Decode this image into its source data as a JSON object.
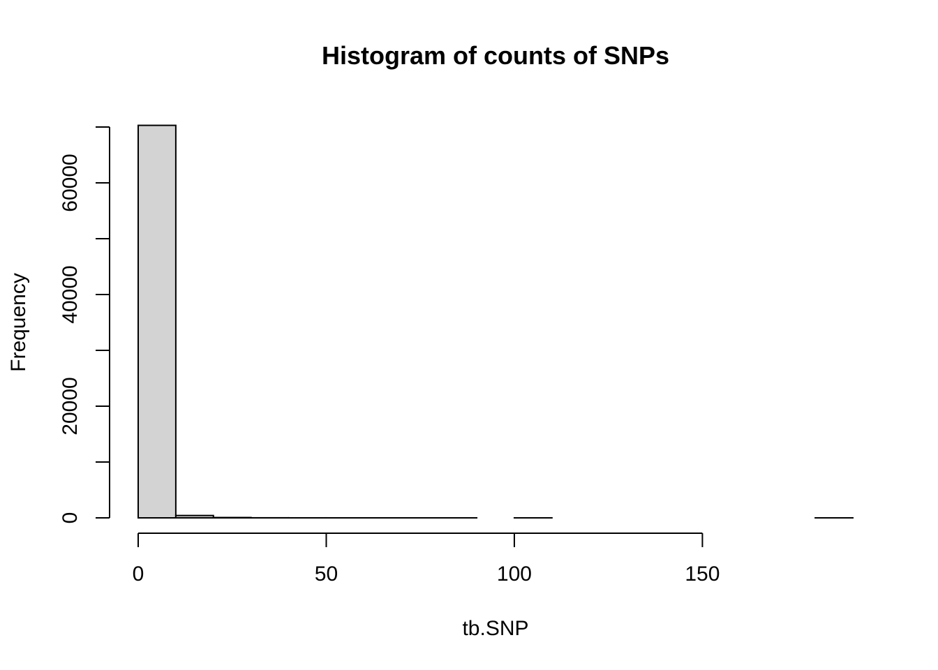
{
  "chart_data": {
    "type": "bar",
    "title": "Histogram of counts of SNPs",
    "xlabel": "tb.SNP",
    "ylabel": "Frequency",
    "bar_fill": "#d3d3d3",
    "bar_stroke": "#000000",
    "xlim": [
      0,
      190
    ],
    "ylim": [
      0,
      70000
    ],
    "x_ticks": [
      0,
      50,
      100,
      150
    ],
    "y_ticks": [
      0,
      10000,
      20000,
      30000,
      40000,
      50000,
      60000,
      70000
    ],
    "y_tick_labels": [
      "0",
      "",
      "20000",
      "",
      "40000",
      "",
      "60000",
      ""
    ],
    "x_tick_labels": [
      "0",
      "50",
      "100",
      "150"
    ],
    "bins": [
      {
        "start": 0,
        "end": 10,
        "count": 70300
      },
      {
        "start": 10,
        "end": 20,
        "count": 420
      },
      {
        "start": 20,
        "end": 30,
        "count": 60
      },
      {
        "start": 30,
        "end": 40,
        "count": 12
      },
      {
        "start": 40,
        "end": 50,
        "count": 5
      },
      {
        "start": 50,
        "end": 60,
        "count": 3
      },
      {
        "start": 60,
        "end": 70,
        "count": 2
      },
      {
        "start": 70,
        "end": 80,
        "count": 1
      },
      {
        "start": 80,
        "end": 90,
        "count": 1
      },
      {
        "start": 90,
        "end": 100,
        "count": 0
      },
      {
        "start": 100,
        "end": 110,
        "count": 1
      },
      {
        "start": 110,
        "end": 120,
        "count": 0
      },
      {
        "start": 120,
        "end": 130,
        "count": 0
      },
      {
        "start": 130,
        "end": 140,
        "count": 0
      },
      {
        "start": 140,
        "end": 150,
        "count": 0
      },
      {
        "start": 150,
        "end": 160,
        "count": 0
      },
      {
        "start": 160,
        "end": 170,
        "count": 0
      },
      {
        "start": 170,
        "end": 180,
        "count": 0
      },
      {
        "start": 180,
        "end": 190,
        "count": 1
      }
    ]
  }
}
